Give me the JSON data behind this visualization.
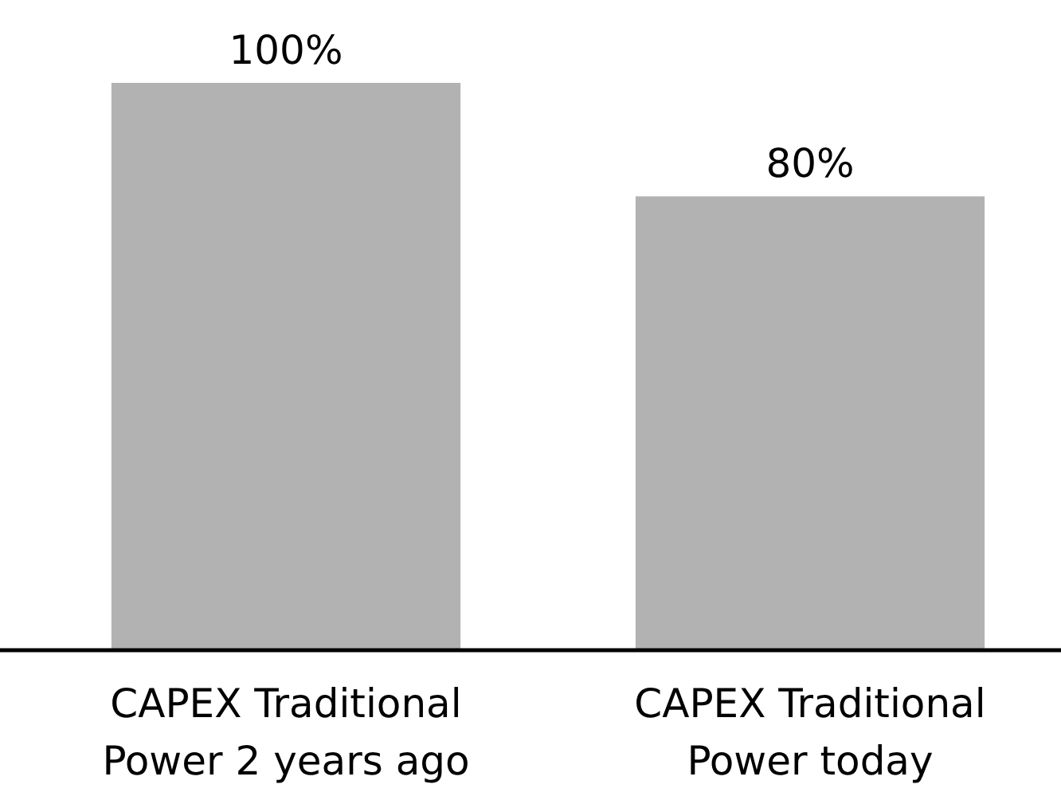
{
  "chart_data": {
    "type": "bar",
    "categories": [
      "CAPEX Traditional Power 2 years ago",
      "CAPEX Traditional Power today"
    ],
    "values": [
      100,
      80
    ],
    "value_labels": [
      "100%",
      "80%"
    ],
    "color": "#b2b2b2"
  }
}
